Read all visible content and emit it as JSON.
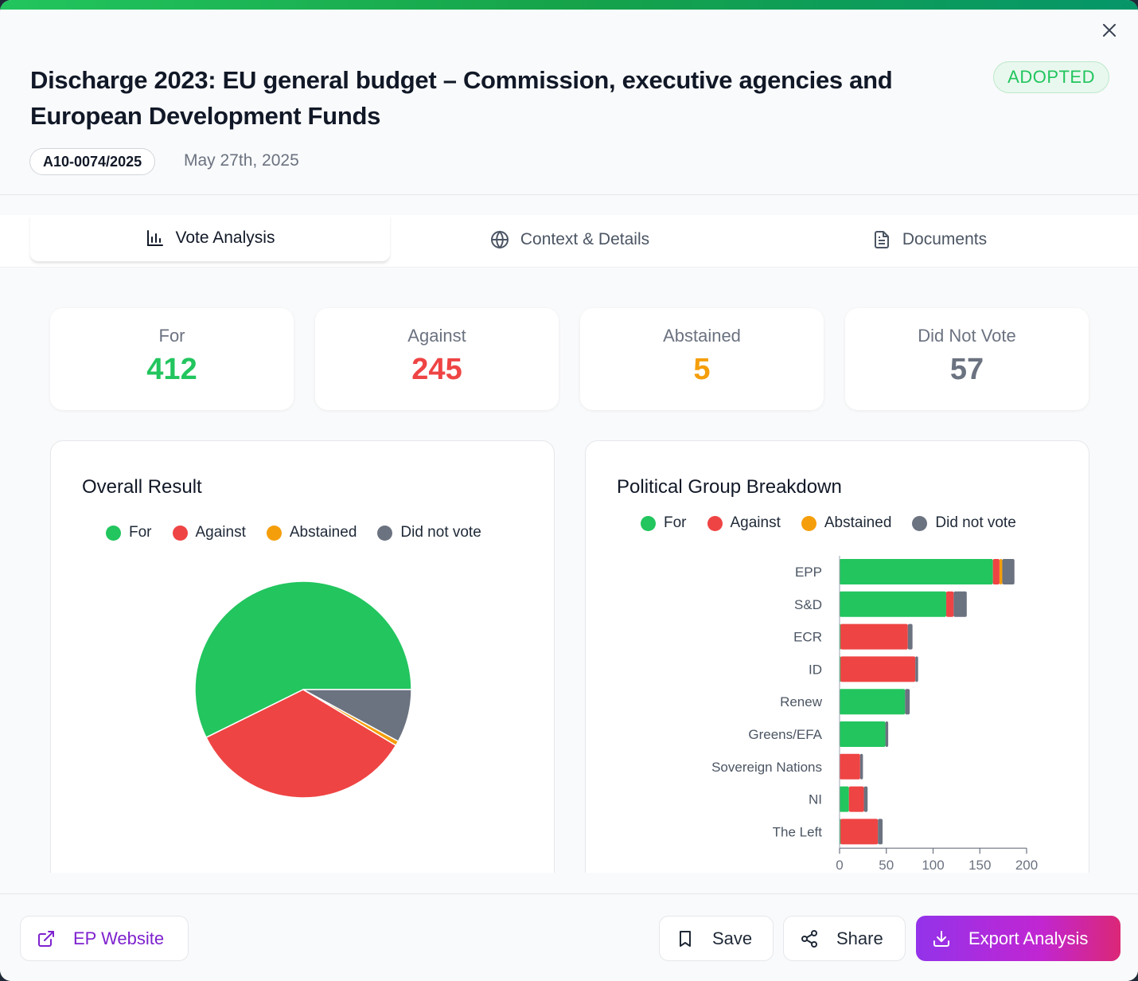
{
  "header": {
    "title": "Discharge 2023: EU general budget – Commission, executive agencies and European Development Funds",
    "status_badge": "ADOPTED",
    "reference": "A10-0074/2025",
    "date": "May 27th, 2025",
    "close_icon": "close-icon"
  },
  "tabs": [
    {
      "label": "Vote Analysis",
      "icon": "bar-chart-icon",
      "active": true
    },
    {
      "label": "Context & Details",
      "icon": "globe-icon",
      "active": false
    },
    {
      "label": "Documents",
      "icon": "document-icon",
      "active": false
    }
  ],
  "stats": [
    {
      "label": "For",
      "value": "412",
      "color": "#22c55e"
    },
    {
      "label": "Against",
      "value": "245",
      "color": "#ef4444"
    },
    {
      "label": "Abstained",
      "value": "5",
      "color": "#f59e0b"
    },
    {
      "label": "Did Not Vote",
      "value": "57",
      "color": "#6b7280"
    }
  ],
  "colors": {
    "for": "#22c55e",
    "against": "#ef4444",
    "abstained": "#f59e0b",
    "did_not_vote": "#6b7280",
    "accent": "#7e22ce"
  },
  "chart_data": [
    {
      "type": "pie",
      "title": "Overall Result",
      "legend": [
        "For",
        "Against",
        "Abstained",
        "Did not vote"
      ],
      "legend_position": "top",
      "categories": [
        "For",
        "Against",
        "Abstained",
        "Did not vote"
      ],
      "values": [
        412,
        245,
        5,
        57
      ],
      "colors": [
        "#22c55e",
        "#ef4444",
        "#f59e0b",
        "#6b7280"
      ]
    },
    {
      "type": "bar",
      "orientation": "horizontal",
      "stacked": true,
      "title": "Political Group Breakdown",
      "legend": [
        "For",
        "Against",
        "Abstained",
        "Did not vote"
      ],
      "legend_position": "top",
      "categories": [
        "EPP",
        "S&D",
        "ECR",
        "ID",
        "Renew",
        "Greens/EFA",
        "Sovereign Nations",
        "NI",
        "The Left"
      ],
      "series": [
        {
          "name": "For",
          "color": "#22c55e",
          "values": [
            164,
            114,
            1,
            1,
            70,
            49,
            0,
            10,
            1
          ]
        },
        {
          "name": "Against",
          "color": "#ef4444",
          "values": [
            7,
            8,
            72,
            80,
            0,
            0,
            22,
            16,
            40
          ]
        },
        {
          "name": "Abstained",
          "color": "#f59e0b",
          "values": [
            3,
            0,
            0,
            0,
            0,
            0,
            0,
            0,
            0
          ]
        },
        {
          "name": "Did not vote",
          "color": "#6b7280",
          "values": [
            13,
            14,
            5,
            3,
            5,
            3,
            3,
            4,
            5
          ]
        }
      ],
      "xlim": [
        0,
        200
      ],
      "xticks": [
        "0",
        "50",
        "100",
        "150",
        "200"
      ],
      "grid": false
    }
  ],
  "footer": {
    "ep_website": "EP Website",
    "save": "Save",
    "share": "Share",
    "export": "Export Analysis"
  }
}
